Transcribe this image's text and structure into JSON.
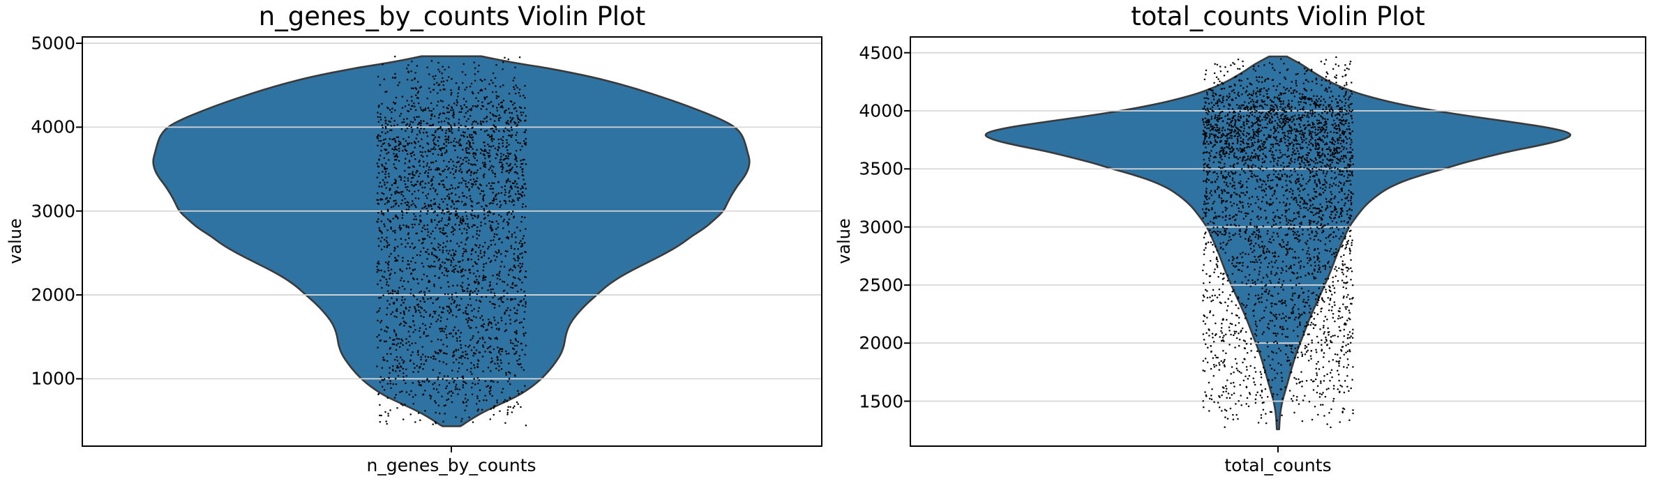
{
  "figure": {
    "background": "#ffffff",
    "text_color": "#000000"
  },
  "style": {
    "grid_color": "#d8d8d8",
    "spine_color": "#000000",
    "violin_fill": "#2f73a2",
    "violin_edge": "#3a3a3a",
    "point_color": "#000000"
  },
  "chart_data": [
    {
      "type": "violin",
      "title": "n_genes_by_counts Violin Plot",
      "ylabel": "value",
      "category_tick_label": "n_genes_by_counts",
      "yticks": [
        1000,
        2000,
        3000,
        4000,
        5000
      ],
      "ylim": [
        197,
        5077
      ],
      "grid": true,
      "legend": "none",
      "value_range_of_data": [
        445,
        4850
      ],
      "kde_profile_value_density": [
        [
          4845,
          0.1
        ],
        [
          4800,
          0.16
        ],
        [
          4750,
          0.24
        ],
        [
          4700,
          0.33
        ],
        [
          4600,
          0.47
        ],
        [
          4500,
          0.58
        ],
        [
          4400,
          0.67
        ],
        [
          4300,
          0.755
        ],
        [
          4200,
          0.83
        ],
        [
          4100,
          0.9
        ],
        [
          4000,
          0.952
        ],
        [
          3900,
          0.975
        ],
        [
          3800,
          0.985
        ],
        [
          3700,
          0.992
        ],
        [
          3600,
          1.0
        ],
        [
          3500,
          0.995
        ],
        [
          3400,
          0.98
        ],
        [
          3300,
          0.958
        ],
        [
          3200,
          0.94
        ],
        [
          3100,
          0.925
        ],
        [
          3000,
          0.912
        ],
        [
          2900,
          0.882
        ],
        [
          2800,
          0.85
        ],
        [
          2700,
          0.805
        ],
        [
          2600,
          0.768
        ],
        [
          2500,
          0.72
        ],
        [
          2400,
          0.665
        ],
        [
          2300,
          0.608
        ],
        [
          2200,
          0.558
        ],
        [
          2100,
          0.518
        ],
        [
          2000,
          0.487
        ],
        [
          1900,
          0.455
        ],
        [
          1800,
          0.428
        ],
        [
          1700,
          0.405
        ],
        [
          1600,
          0.39
        ],
        [
          1500,
          0.382
        ],
        [
          1400,
          0.378
        ],
        [
          1300,
          0.368
        ],
        [
          1200,
          0.35
        ],
        [
          1100,
          0.328
        ],
        [
          1000,
          0.302
        ],
        [
          900,
          0.268
        ],
        [
          800,
          0.225
        ],
        [
          700,
          0.165
        ],
        [
          600,
          0.105
        ],
        [
          500,
          0.058
        ],
        [
          450,
          0.038
        ],
        [
          435,
          0.03
        ]
      ],
      "jitter_points": {
        "count": 2700,
        "mixture": [
          {
            "weight": 0.4,
            "mean": 3800,
            "sd": 500
          },
          {
            "weight": 0.3,
            "mean": 2750,
            "sd": 620
          },
          {
            "weight": 0.17,
            "mean": 1800,
            "sd": 520
          },
          {
            "weight": 0.1,
            "mean": 1150,
            "sd": 330
          },
          {
            "weight": 0.03,
            "mean": 700,
            "sd": 200
          }
        ]
      }
    },
    {
      "type": "violin",
      "title": "total_counts Violin Plot",
      "ylabel": "value",
      "category_tick_label": "total_counts",
      "yticks": [
        1500,
        2000,
        2500,
        3000,
        3500,
        4000,
        4500
      ],
      "ylim": [
        1119,
        4636
      ],
      "grid": true,
      "legend": "none",
      "value_range_of_data": [
        1262,
        4462
      ],
      "kde_profile_value_density": [
        [
          4468,
          0.03
        ],
        [
          4440,
          0.05
        ],
        [
          4400,
          0.08
        ],
        [
          4350,
          0.108
        ],
        [
          4300,
          0.14
        ],
        [
          4250,
          0.175
        ],
        [
          4200,
          0.218
        ],
        [
          4150,
          0.27
        ],
        [
          4100,
          0.34
        ],
        [
          4050,
          0.425
        ],
        [
          4000,
          0.53
        ],
        [
          3950,
          0.66
        ],
        [
          3900,
          0.8
        ],
        [
          3850,
          0.93
        ],
        [
          3800,
          1.0
        ],
        [
          3750,
          0.965
        ],
        [
          3700,
          0.88
        ],
        [
          3650,
          0.78
        ],
        [
          3600,
          0.7
        ],
        [
          3550,
          0.625
        ],
        [
          3500,
          0.56
        ],
        [
          3450,
          0.49
        ],
        [
          3400,
          0.43
        ],
        [
          3350,
          0.385
        ],
        [
          3300,
          0.35
        ],
        [
          3200,
          0.3
        ],
        [
          3100,
          0.268
        ],
        [
          3000,
          0.24
        ],
        [
          2900,
          0.222
        ],
        [
          2800,
          0.205
        ],
        [
          2700,
          0.19
        ],
        [
          2600,
          0.175
        ],
        [
          2500,
          0.158
        ],
        [
          2400,
          0.14
        ],
        [
          2300,
          0.122
        ],
        [
          2200,
          0.105
        ],
        [
          2100,
          0.09
        ],
        [
          2000,
          0.075
        ],
        [
          1900,
          0.06
        ],
        [
          1800,
          0.048
        ],
        [
          1700,
          0.037
        ],
        [
          1600,
          0.026
        ],
        [
          1550,
          0.02
        ],
        [
          1500,
          0.015
        ],
        [
          1450,
          0.011
        ],
        [
          1400,
          0.008
        ],
        [
          1350,
          0.006
        ],
        [
          1300,
          0.005
        ],
        [
          1258,
          0.004
        ]
      ],
      "jitter_points": {
        "count": 3400,
        "mixture": [
          {
            "weight": 0.47,
            "mean": 3850,
            "sd": 270
          },
          {
            "weight": 0.22,
            "mean": 3200,
            "sd": 330
          },
          {
            "weight": 0.17,
            "mean": 2550,
            "sd": 380
          },
          {
            "weight": 0.11,
            "mean": 1950,
            "sd": 320
          },
          {
            "weight": 0.03,
            "mean": 1520,
            "sd": 160
          }
        ]
      }
    }
  ]
}
